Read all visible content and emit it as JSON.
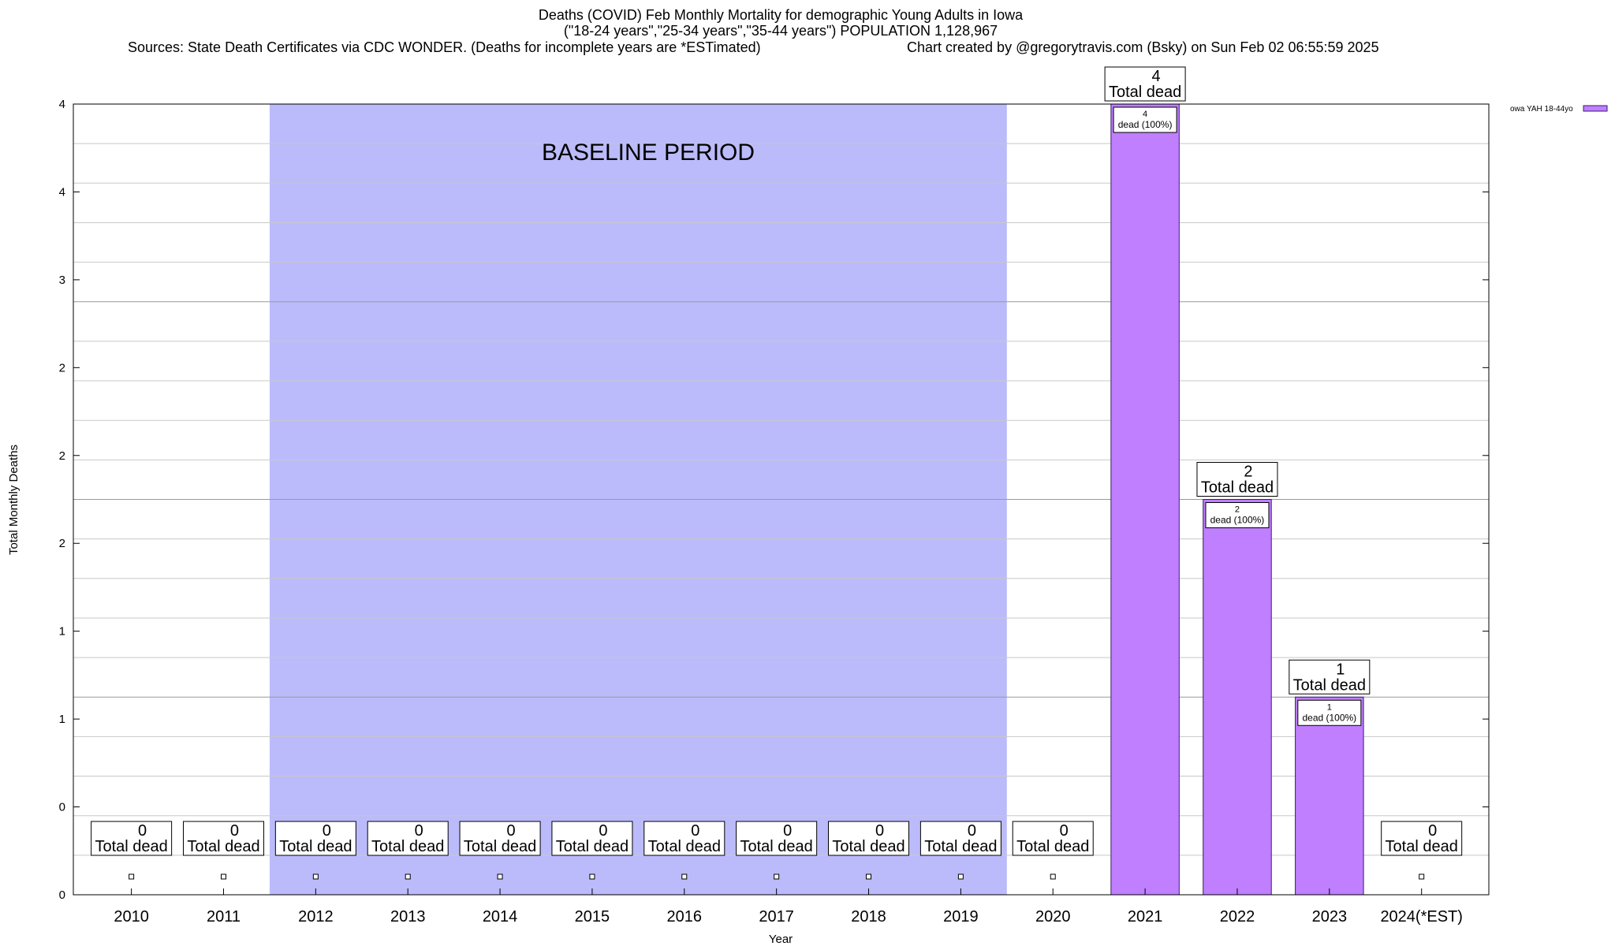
{
  "chart_data": {
    "type": "bar",
    "title_lines": [
      "Deaths (COVID) Feb Monthly Mortality for demographic Young Adults in Iowa",
      "(\"18-24 years\",\"25-34 years\",\"35-44 years\") POPULATION 1,128,967"
    ],
    "sources": "Sources: State Death Certificates via CDC WONDER. (Deaths for incomplete years are *ESTimated)",
    "credit": "Chart created by @gregorytravis.com (Bsky) on Sun Feb 02 06:55:59 2025",
    "xlabel": "Year",
    "ylabel": "Total Monthly Deaths",
    "ylim": [
      0,
      4
    ],
    "y_tick_labels": [
      "0",
      "0",
      "1",
      "1",
      "2",
      "2",
      "2",
      "3",
      "4",
      "4"
    ],
    "categories": [
      "2010",
      "2011",
      "2012",
      "2013",
      "2014",
      "2015",
      "2016",
      "2017",
      "2018",
      "2019",
      "2020",
      "2021",
      "2022",
      "2023",
      "2024(*EST)"
    ],
    "values": [
      0,
      0,
      0,
      0,
      0,
      0,
      0,
      0,
      0,
      0,
      0,
      4,
      2,
      1,
      0
    ],
    "total_label_word": "Total dead",
    "inner_label_suffix": "dead (100%)",
    "baseline": {
      "label": "BASELINE PERIOD",
      "start_category": "2012",
      "end_category": "2019",
      "color": "#bbbbfb"
    },
    "legend": {
      "label": "owa YAH 18-44yo",
      "position": "top-right",
      "color": "#bf7fff"
    },
    "bar_color": "#bf7fff",
    "bar_edge_color": "#3a1c6b",
    "grid": true
  }
}
